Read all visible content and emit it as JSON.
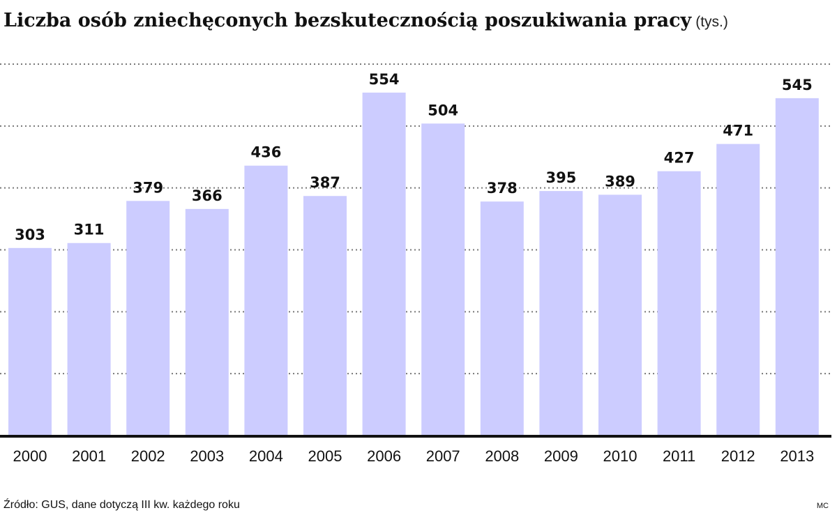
{
  "chart_data": {
    "type": "bar",
    "title": "Liczba osób zniechęconych bezskutecznością poszukiwania pracy",
    "unit": "(tys.)",
    "categories": [
      "2000",
      "2001",
      "2002",
      "2003",
      "2004",
      "2005",
      "2006",
      "2007",
      "2008",
      "2009",
      "2010",
      "2011",
      "2012",
      "2013"
    ],
    "values": [
      303,
      311,
      379,
      366,
      436,
      387,
      554,
      504,
      378,
      395,
      389,
      427,
      471,
      545
    ],
    "ylim": [
      0,
      600
    ],
    "grid": true,
    "bar_color": "#ccccff",
    "axis_color": "#111111",
    "grid_color": "#777777"
  },
  "footer": {
    "source": "Źródło: GUS, dane dotyczą III kw. każdego roku",
    "credit": "MC"
  }
}
